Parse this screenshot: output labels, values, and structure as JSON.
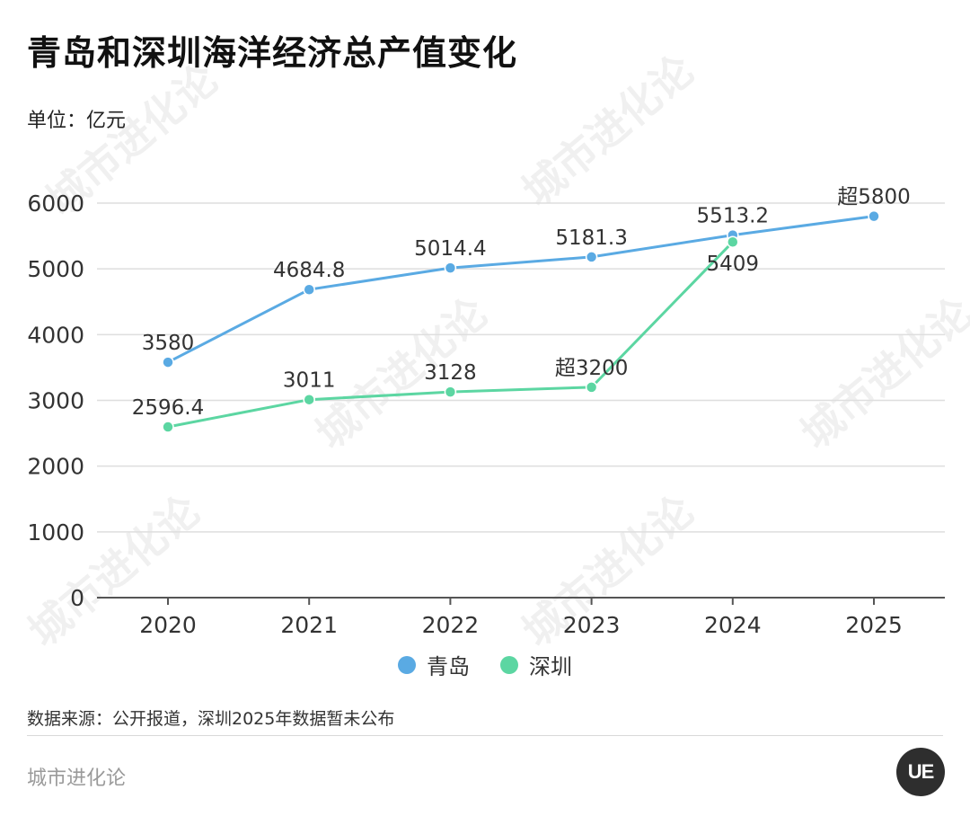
{
  "header": {
    "title": "青岛和深圳海洋经济总产值变化",
    "unit": "单位：亿元"
  },
  "legend": {
    "items": [
      {
        "label": "青岛",
        "color": "#5aaae3"
      },
      {
        "label": "深圳",
        "color": "#5cd6a2"
      }
    ]
  },
  "footer": {
    "source": "数据来源：公开报道，深圳2025年数据暂未公布",
    "brand": "城市进化论",
    "logo_text": "UE"
  },
  "watermark": {
    "text": "城市进化论"
  },
  "chart_data": {
    "type": "line",
    "title": "青岛和深圳海洋经济总产值变化",
    "ylabel": "单位：亿元",
    "categories": [
      "2020",
      "2021",
      "2022",
      "2023",
      "2024",
      "2025"
    ],
    "ylim": [
      0,
      6000
    ],
    "yticks": [
      0,
      1000,
      2000,
      3000,
      4000,
      5000,
      6000
    ],
    "grid": true,
    "legend_position": "bottom",
    "series": [
      {
        "name": "青岛",
        "color": "#5aaae3",
        "values": [
          3580,
          4684.8,
          5014.4,
          5181.3,
          5513.2,
          5800
        ],
        "labels": [
          "3580",
          "4684.8",
          "5014.4",
          "5181.3",
          "5513.2",
          "超5800"
        ]
      },
      {
        "name": "深圳",
        "color": "#5cd6a2",
        "values": [
          2596.4,
          3011,
          3128,
          3200,
          5409,
          null
        ],
        "labels": [
          "2596.4",
          "3011",
          "3128",
          "超3200",
          "5409",
          null
        ]
      }
    ]
  }
}
